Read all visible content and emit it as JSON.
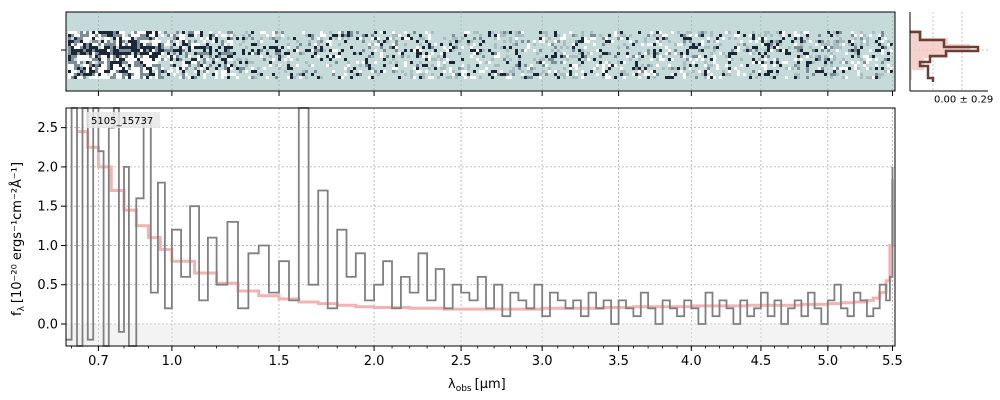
{
  "chart_data": [
    {
      "type": "heatmap",
      "panel": "2d-spectrum",
      "colormap": [
        "#c4dbd9",
        "#ffffff",
        "#1c2838"
      ],
      "background": "#c4dbd9"
    },
    {
      "type": "line",
      "panel": "1d-spectrum",
      "object_label": "5105_15737",
      "xlabel_main": "λ",
      "xlabel_sub": "obs",
      "xlabel_unit": "[μm]",
      "ylabel_main": "f",
      "ylabel_sub": "λ",
      "ylabel_unit": "[10⁻²⁰ ergs⁻¹cm⁻²Å⁻¹]",
      "x_tick_labels": [
        "0.7",
        "1.0",
        "1.5",
        "2.0",
        "2.5",
        "3.0",
        "3.5",
        "4.0",
        "4.5",
        "5.0",
        "5.5"
      ],
      "x_tick_values": [
        0.7,
        1.0,
        1.5,
        2.0,
        2.5,
        3.0,
        3.5,
        4.0,
        4.5,
        5.0,
        5.5
      ],
      "y_tick_labels": [
        "0.0",
        "0.5",
        "1.0",
        "1.5",
        "2.0",
        "2.5"
      ],
      "y_tick_values": [
        0.0,
        0.5,
        1.0,
        1.5,
        2.0,
        2.5
      ],
      "xlim": [
        0.58,
        5.52
      ],
      "ylim": [
        -0.28,
        2.75
      ],
      "x_scale": "power-law (approx. sqrt-like)",
      "grid": true,
      "colors": {
        "flux": "#808080",
        "model": "#f4b3b3",
        "zero_band": "#e8e8e8"
      },
      "series": [
        {
          "role": "flux",
          "x": [
            0.58,
            0.6,
            0.62,
            0.64,
            0.66,
            0.68,
            0.7,
            0.72,
            0.74,
            0.76,
            0.78,
            0.8,
            0.82,
            0.85,
            0.88,
            0.91,
            0.94,
            0.97,
            1.0,
            1.04,
            1.08,
            1.12,
            1.16,
            1.2,
            1.25,
            1.3,
            1.35,
            1.4,
            1.45,
            1.5,
            1.55,
            1.6,
            1.65,
            1.7,
            1.75,
            1.8,
            1.85,
            1.9,
            1.95,
            2.0,
            2.05,
            2.1,
            2.15,
            2.2,
            2.25,
            2.3,
            2.35,
            2.4,
            2.45,
            2.5,
            2.55,
            2.6,
            2.65,
            2.7,
            2.75,
            2.8,
            2.85,
            2.9,
            2.95,
            3.0,
            3.05,
            3.1,
            3.15,
            3.2,
            3.25,
            3.3,
            3.35,
            3.4,
            3.45,
            3.5,
            3.55,
            3.6,
            3.65,
            3.7,
            3.75,
            3.8,
            3.85,
            3.9,
            3.95,
            4.0,
            4.05,
            4.1,
            4.15,
            4.2,
            4.25,
            4.3,
            4.35,
            4.4,
            4.45,
            4.5,
            4.55,
            4.6,
            4.65,
            4.7,
            4.75,
            4.8,
            4.85,
            4.9,
            4.95,
            5.0,
            5.05,
            5.1,
            5.15,
            5.2,
            5.25,
            5.3,
            5.35,
            5.4,
            5.45,
            5.48,
            5.5
          ],
          "y": [
            -0.2,
            3.0,
            -0.3,
            2.9,
            -0.2,
            3.1,
            2.2,
            -0.3,
            2.5,
            2.8,
            -0.1,
            2.0,
            -0.3,
            1.6,
            2.6,
            0.4,
            1.8,
            0.2,
            1.2,
            0.6,
            1.5,
            0.3,
            1.1,
            0.5,
            1.3,
            0.2,
            0.9,
            1.0,
            0.4,
            0.8,
            0.3,
            2.8,
            0.5,
            1.7,
            0.2,
            1.2,
            0.6,
            0.9,
            0.3,
            0.5,
            0.8,
            0.2,
            0.6,
            0.4,
            0.9,
            0.3,
            0.7,
            0.2,
            0.5,
            0.4,
            0.3,
            0.6,
            0.2,
            0.5,
            0.1,
            0.4,
            0.3,
            0.2,
            0.5,
            0.1,
            0.4,
            0.3,
            0.2,
            0.3,
            0.1,
            0.4,
            0.2,
            0.3,
            0.0,
            0.3,
            0.2,
            0.1,
            0.4,
            0.2,
            0.0,
            0.3,
            0.2,
            0.1,
            0.3,
            0.2,
            0.0,
            0.4,
            0.1,
            0.3,
            0.2,
            0.0,
            0.3,
            0.1,
            0.2,
            0.4,
            0.1,
            0.3,
            0.0,
            0.2,
            0.3,
            0.1,
            0.4,
            0.2,
            0.0,
            0.3,
            0.5,
            0.2,
            0.1,
            0.4,
            0.3,
            0.1,
            0.2,
            0.5,
            0.3,
            0.6,
            2.0
          ]
        },
        {
          "role": "model",
          "x": [
            0.62,
            0.66,
            0.7,
            0.75,
            0.8,
            0.85,
            0.9,
            0.95,
            1.0,
            1.1,
            1.2,
            1.3,
            1.4,
            1.5,
            1.6,
            1.7,
            1.8,
            1.9,
            2.0,
            2.2,
            2.4,
            2.6,
            2.8,
            3.0,
            3.2,
            3.4,
            3.6,
            3.8,
            4.0,
            4.2,
            4.4,
            4.6,
            4.8,
            5.0,
            5.1,
            5.2,
            5.3,
            5.35,
            5.4,
            5.45,
            5.48,
            5.5
          ],
          "y": [
            2.45,
            2.25,
            2.0,
            1.7,
            1.45,
            1.25,
            1.1,
            0.95,
            0.8,
            0.65,
            0.52,
            0.42,
            0.36,
            0.32,
            0.28,
            0.26,
            0.24,
            0.22,
            0.21,
            0.2,
            0.19,
            0.19,
            0.19,
            0.2,
            0.2,
            0.21,
            0.22,
            0.22,
            0.23,
            0.23,
            0.24,
            0.24,
            0.25,
            0.26,
            0.27,
            0.28,
            0.3,
            0.33,
            0.4,
            0.55,
            1.0,
            1.85
          ]
        }
      ]
    },
    {
      "type": "histogram",
      "panel": "pixel-histogram",
      "annotation": "0.00 ± 0.29",
      "colors": {
        "outline": "#6b3f33",
        "fill": "#f3c7c2"
      }
    }
  ]
}
